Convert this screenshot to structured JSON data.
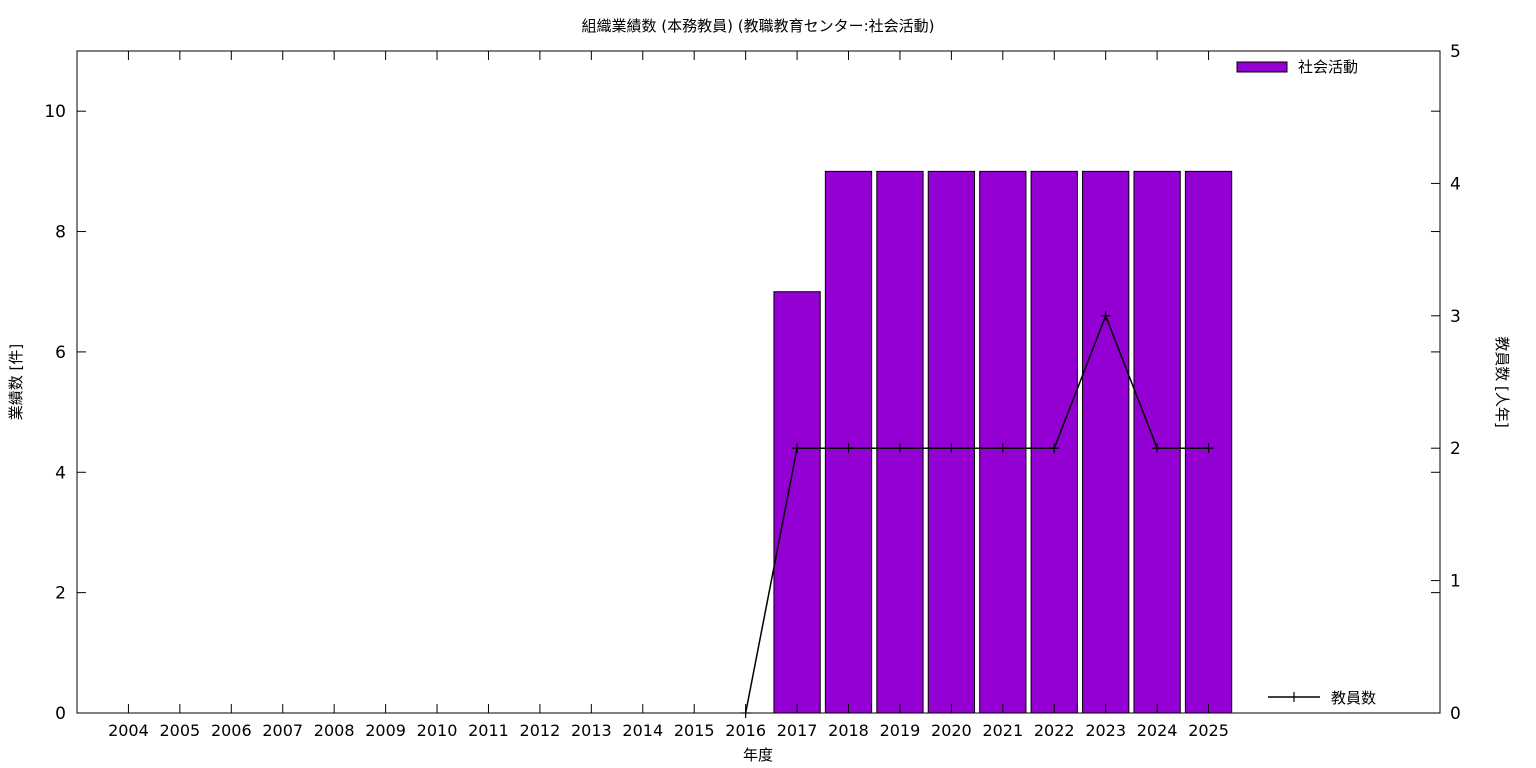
{
  "chart_data": {
    "type": "bar",
    "title": "組織業績数 (本務教員) (教職教育センター:社会活動)",
    "xlabel": "年度",
    "ylabel": "業績数 [件]",
    "y2label": "教員数 [人年]",
    "categories": [
      "2004",
      "2005",
      "2006",
      "2007",
      "2008",
      "2009",
      "2010",
      "2011",
      "2012",
      "2013",
      "2014",
      "2015",
      "2016",
      "2017",
      "2018",
      "2019",
      "2020",
      "2021",
      "2022",
      "2023",
      "2024",
      "2025"
    ],
    "ylim": [
      0,
      11
    ],
    "yticks": [
      0,
      2,
      4,
      6,
      8,
      10
    ],
    "y2lim": [
      0,
      5
    ],
    "y2ticks": [
      0,
      1,
      2,
      3,
      4,
      5
    ],
    "grid": false,
    "series": [
      {
        "name": "社会活動",
        "type": "bar",
        "axis": "left",
        "color": "#9400d3",
        "values": [
          null,
          null,
          null,
          null,
          null,
          null,
          null,
          null,
          null,
          null,
          null,
          null,
          null,
          7,
          9,
          9,
          9,
          9,
          9,
          9,
          9,
          9
        ]
      },
      {
        "name": "教員数",
        "type": "line",
        "axis": "right",
        "color": "#000000",
        "values": [
          null,
          null,
          null,
          null,
          null,
          null,
          null,
          null,
          null,
          null,
          null,
          null,
          0,
          2,
          2,
          2,
          2,
          2,
          2,
          3,
          2,
          2
        ]
      }
    ],
    "legend": {
      "bar_position": "top-right",
      "line_position": "bottom-right"
    }
  }
}
